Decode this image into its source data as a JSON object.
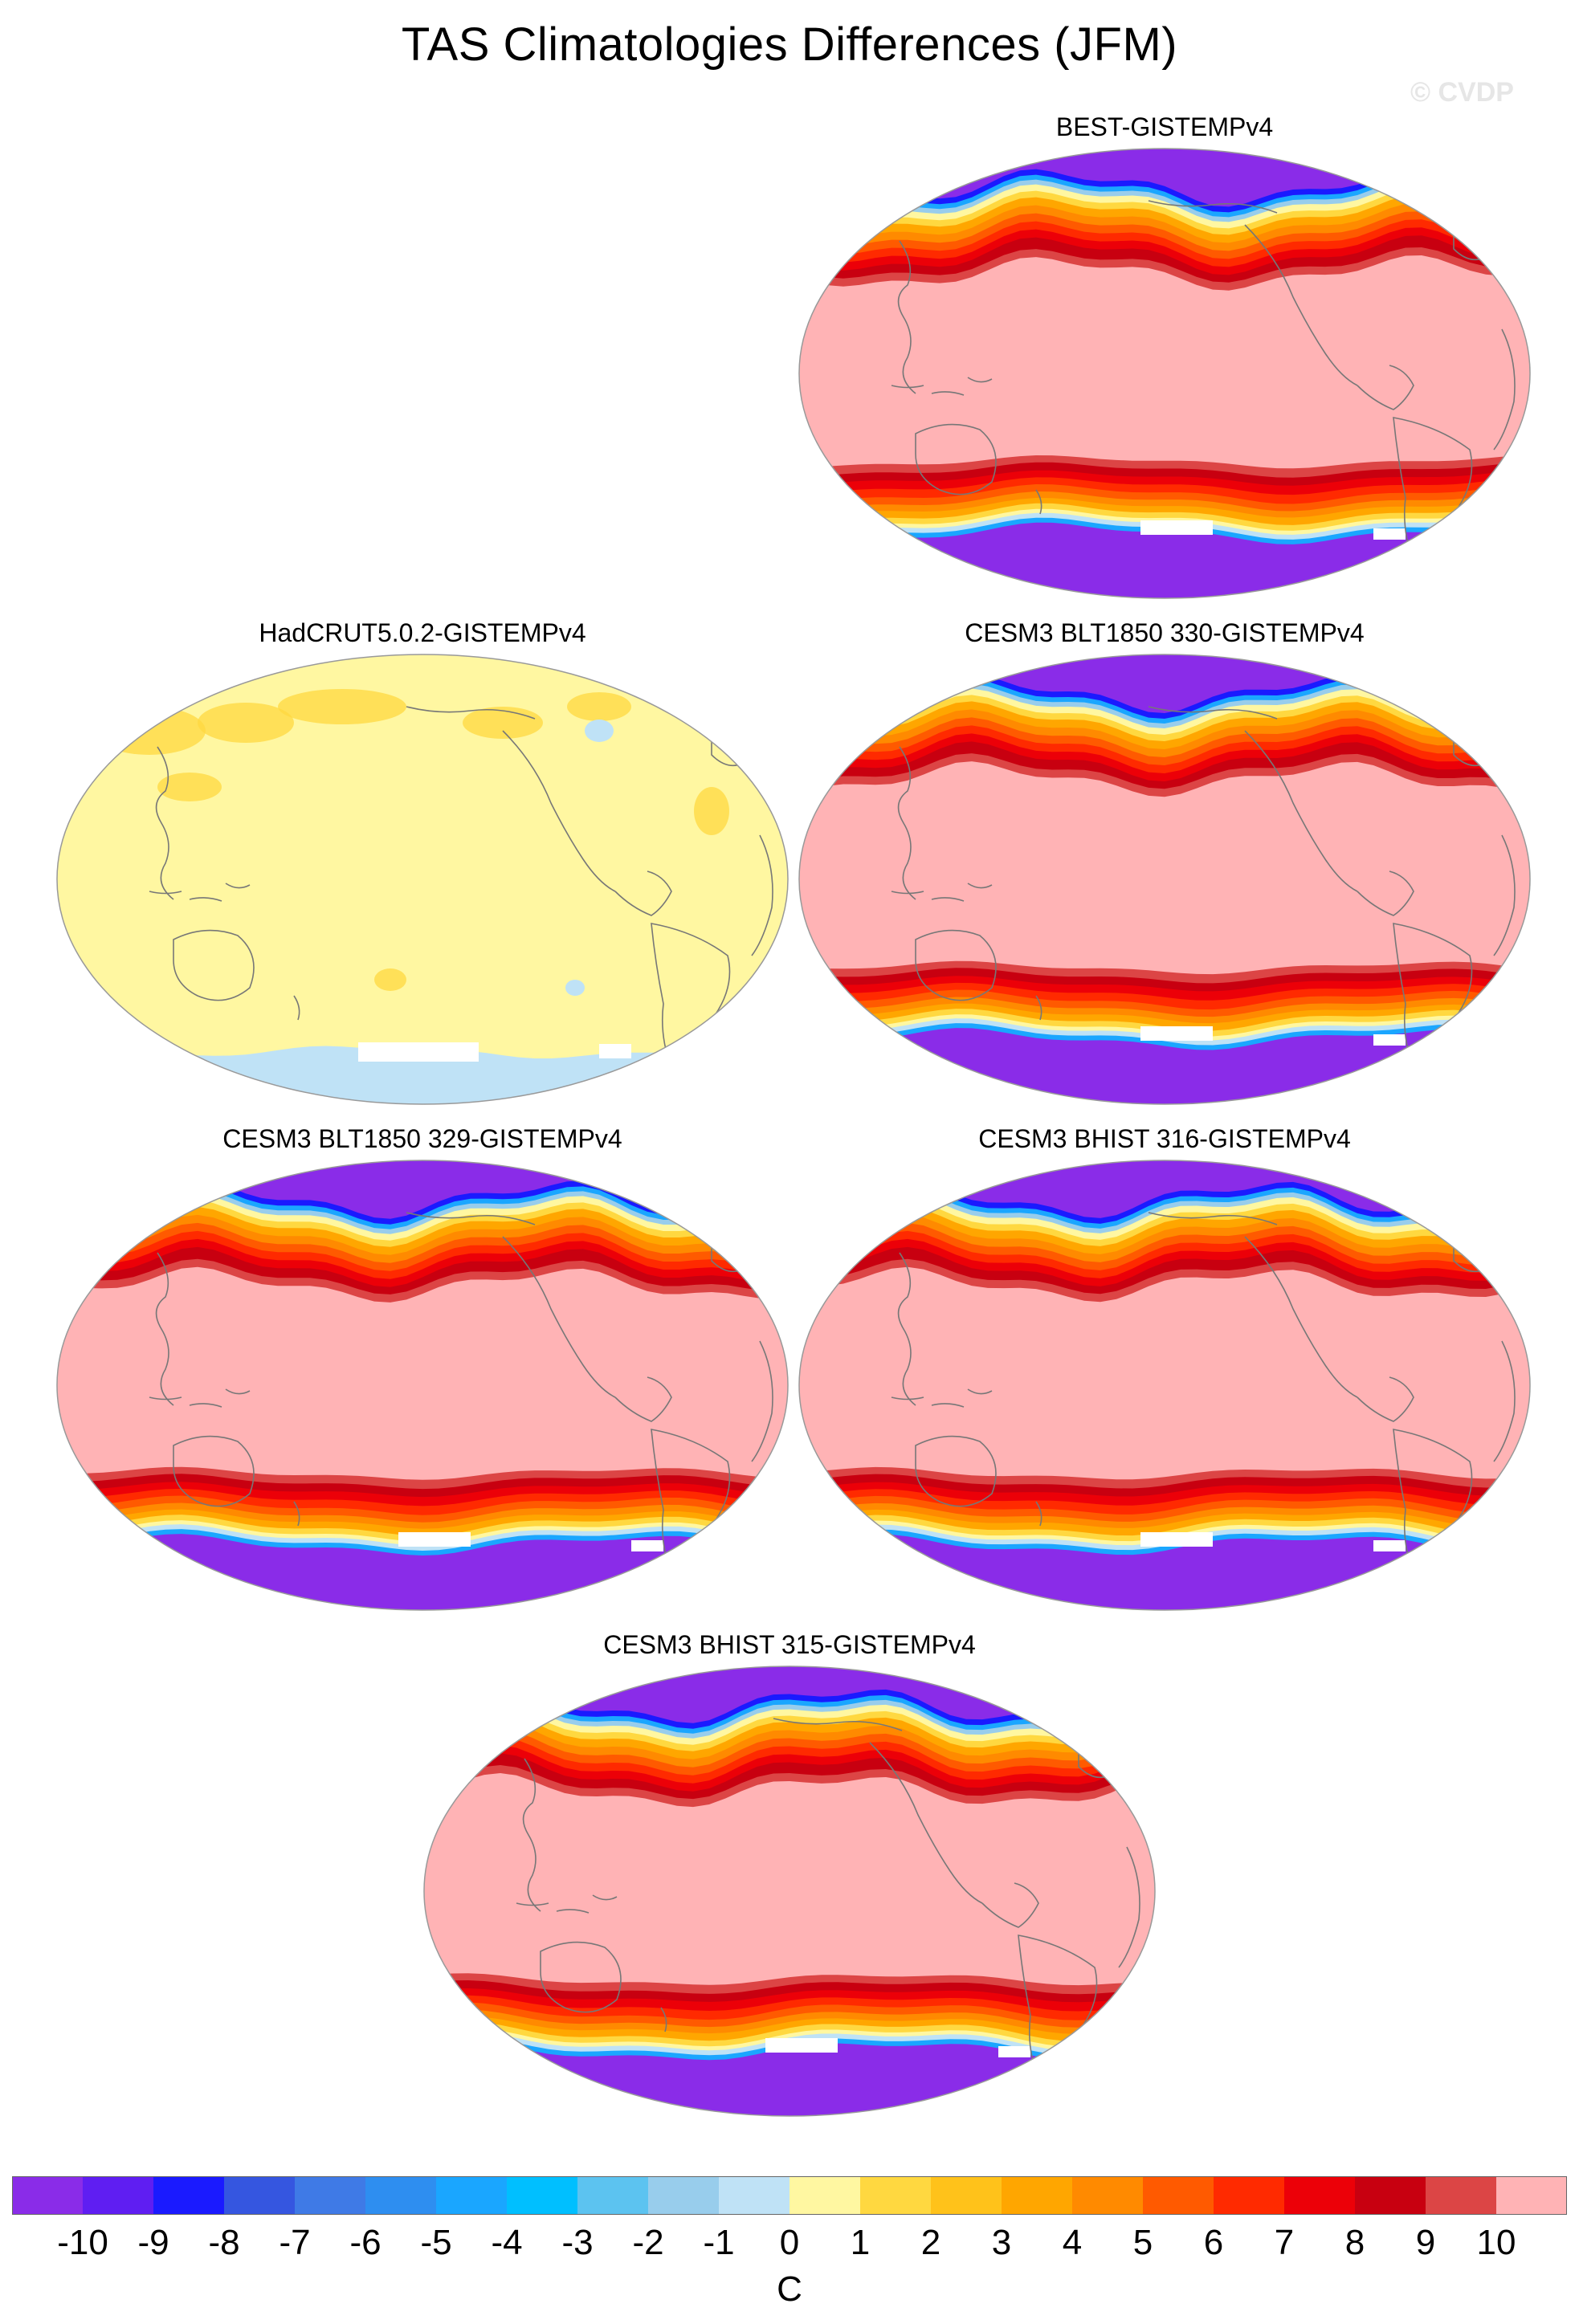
{
  "title": "TAS Climatologies Differences (JFM)",
  "watermark": "© CVDP",
  "panels": [
    {
      "id": "best",
      "title": "BEST-GISTEMPv4",
      "pattern": "model"
    },
    {
      "id": "hadcrut",
      "title": "HadCRUT5.0.2-GISTEMPv4",
      "pattern": "obs"
    },
    {
      "id": "blt330",
      "title": "CESM3 BLT1850 330-GISTEMPv4",
      "pattern": "model"
    },
    {
      "id": "blt329",
      "title": "CESM3 BLT1850 329-GISTEMPv4",
      "pattern": "model"
    },
    {
      "id": "bhist316",
      "title": "CESM3 BHIST 316-GISTEMPv4",
      "pattern": "model"
    },
    {
      "id": "bhist315",
      "title": "CESM3 BHIST 315-GISTEMPv4",
      "pattern": "model"
    }
  ],
  "colorbar": {
    "unit": "C",
    "labels": [
      "-10",
      "-9",
      "-8",
      "-7",
      "-6",
      "-5",
      "-4",
      "-3",
      "-2",
      "-1",
      "0",
      "1",
      "2",
      "3",
      "4",
      "5",
      "6",
      "7",
      "8",
      "9",
      "10"
    ],
    "colors": [
      "#8a2ce8",
      "#5f1ef2",
      "#1a1aff",
      "#3556e0",
      "#3f7ae6",
      "#2e8ef0",
      "#1aa6ff",
      "#00bfff",
      "#5cc3f0",
      "#98cdec",
      "#bfe2f6",
      "#fff7a1",
      "#ffd840",
      "#ffc21a",
      "#ffa600",
      "#ff8a00",
      "#ff5a00",
      "#ff2a00",
      "#ec0008",
      "#c80010",
      "#dc4545",
      "#ffb3b5"
    ]
  },
  "palette": {
    "ocean_warm": "#ffb3b5",
    "deep_cold": "#8a2ce8",
    "obs_yellow": "#fff7a1",
    "obs_orange": "#ffd840",
    "obs_blue": "#bfe2f6",
    "coast": "#777777"
  }
}
